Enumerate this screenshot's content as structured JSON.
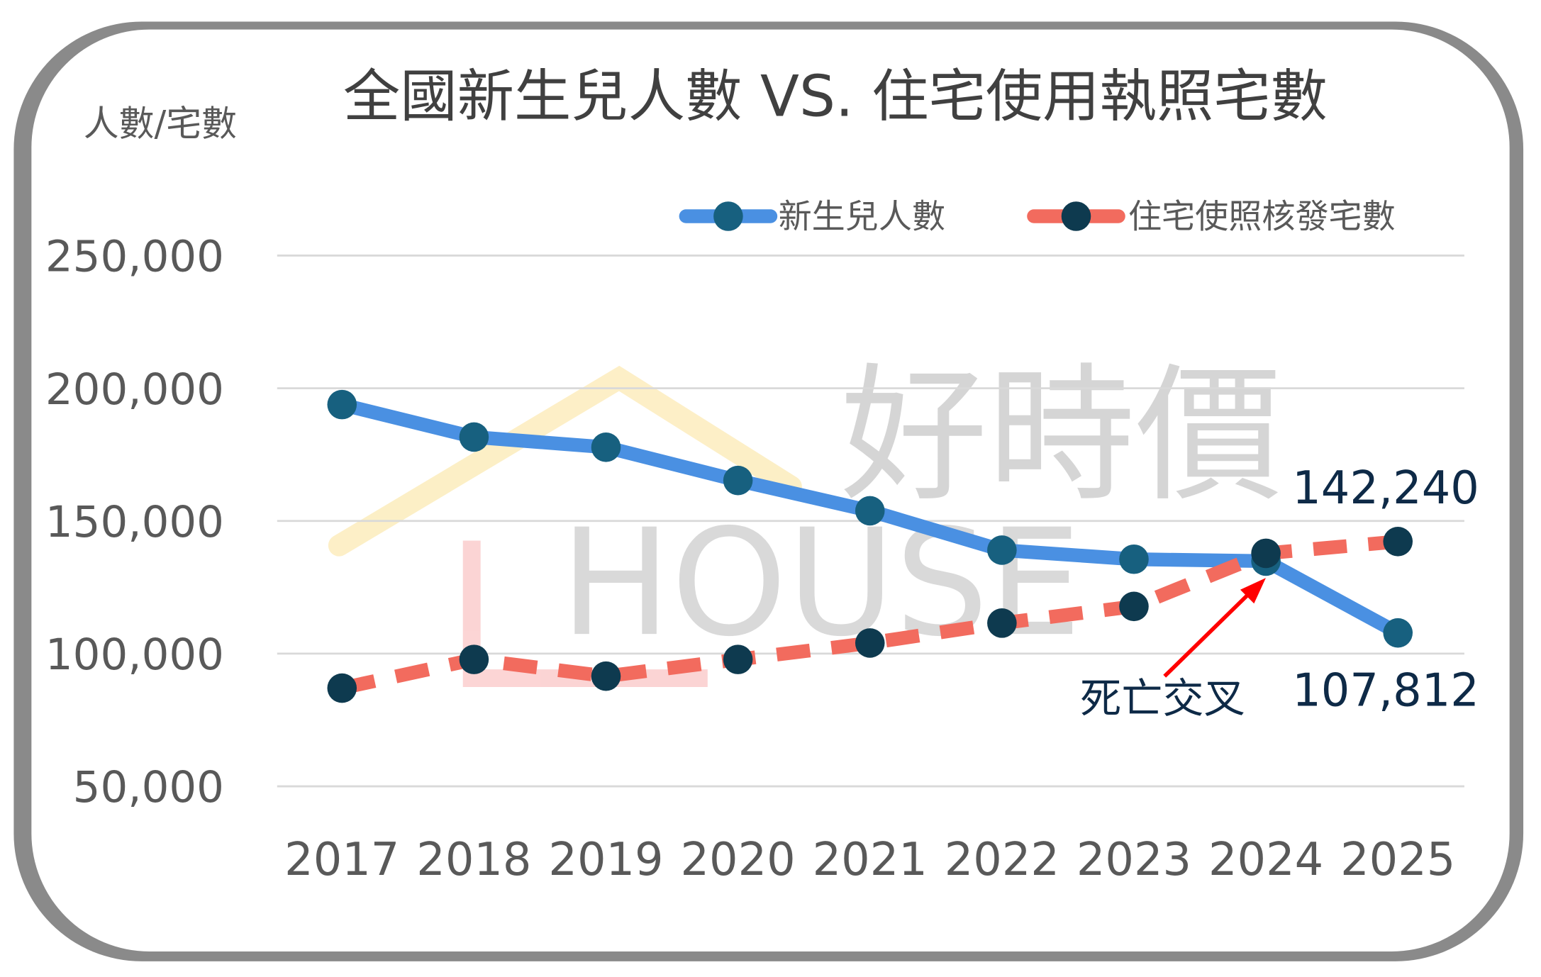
{
  "chart_data": {
    "type": "line",
    "title": "全國新生兒人數 VS. 住宅使用執照宅數",
    "ylabel": "人數/宅數",
    "xlabel": "",
    "categories": [
      "2017",
      "2018",
      "2019",
      "2020",
      "2021",
      "2022",
      "2023",
      "2024",
      "2025"
    ],
    "ylim": [
      50000,
      250000
    ],
    "yticks": [
      50000,
      100000,
      150000,
      200000,
      250000
    ],
    "ytick_labels": [
      "50,000",
      "100,000",
      "150,000",
      "200,000",
      "250,000"
    ],
    "grid": true,
    "legend_position": "top-right",
    "series": [
      {
        "name": "新生兒人數",
        "values": [
          193844,
          181601,
          177767,
          165249,
          153820,
          138986,
          135571,
          134856,
          107812
        ],
        "line_color": "#4A90E2",
        "marker_color": "#17607F",
        "style": "solid"
      },
      {
        "name": "住宅使照核發宅數",
        "values": [
          87000,
          97800,
          91500,
          97800,
          104000,
          111500,
          117800,
          137800,
          142240
        ],
        "line_color": "#F26B5E",
        "marker_color": "#0E3A4F",
        "style": "dashed"
      }
    ],
    "annotations": [
      {
        "text": "死亡交叉",
        "target_category": "2024",
        "arrow_color": "#FF0000"
      },
      {
        "text": "142,240",
        "series": "住宅使照核發宅數",
        "category": "2025"
      },
      {
        "text": "107,812",
        "series": "新生兒人數",
        "category": "2025"
      }
    ]
  },
  "watermark": {
    "text": "好時價 HOUSE+"
  }
}
